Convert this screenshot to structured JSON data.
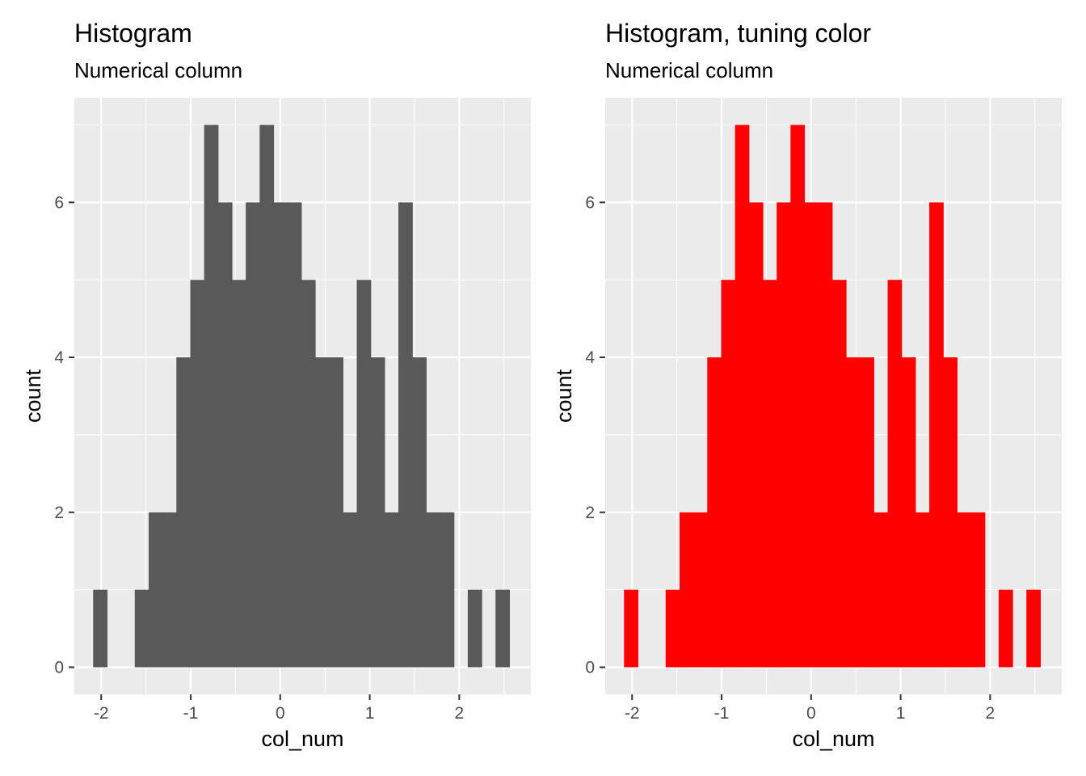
{
  "chart_data": [
    {
      "type": "bar",
      "subtype": "histogram",
      "title": "Histogram",
      "subtitle": "Numerical column",
      "xlabel": "col_num",
      "ylabel": "count",
      "fill_color": "#595959",
      "background_color": "#EBEBEB",
      "grid": true,
      "xlim": [
        -2.3,
        2.8
      ],
      "ylim": [
        -0.35,
        7.35
      ],
      "x_ticks": [
        -2,
        -1,
        0,
        1,
        2
      ],
      "x_tick_labels": [
        "-2",
        "-1",
        "0",
        "1",
        "2"
      ],
      "y_ticks": [
        0,
        2,
        4,
        6
      ],
      "y_tick_labels": [
        "0",
        "2",
        "4",
        "6"
      ],
      "bin_width": 0.155,
      "x_start": -2.09,
      "counts": [
        1,
        0,
        0,
        1,
        2,
        2,
        4,
        5,
        7,
        6,
        5,
        6,
        7,
        6,
        6,
        5,
        4,
        4,
        2,
        5,
        4,
        2,
        6,
        4,
        2,
        2,
        0,
        1,
        0,
        1
      ]
    },
    {
      "type": "bar",
      "subtype": "histogram",
      "title": "Histogram, tuning color",
      "subtitle": "Numerical column",
      "xlabel": "col_num",
      "ylabel": "count",
      "fill_color": "#FF0000",
      "background_color": "#EBEBEB",
      "grid": true,
      "xlim": [
        -2.3,
        2.8
      ],
      "ylim": [
        -0.35,
        7.35
      ],
      "x_ticks": [
        -2,
        -1,
        0,
        1,
        2
      ],
      "x_tick_labels": [
        "-2",
        "-1",
        "0",
        "1",
        "2"
      ],
      "y_ticks": [
        0,
        2,
        4,
        6
      ],
      "y_tick_labels": [
        "0",
        "2",
        "4",
        "6"
      ],
      "bin_width": 0.155,
      "x_start": -2.09,
      "counts": [
        1,
        0,
        0,
        1,
        2,
        2,
        4,
        5,
        7,
        6,
        5,
        6,
        7,
        6,
        6,
        5,
        4,
        4,
        2,
        5,
        4,
        2,
        6,
        4,
        2,
        2,
        0,
        1,
        0,
        1
      ]
    }
  ]
}
